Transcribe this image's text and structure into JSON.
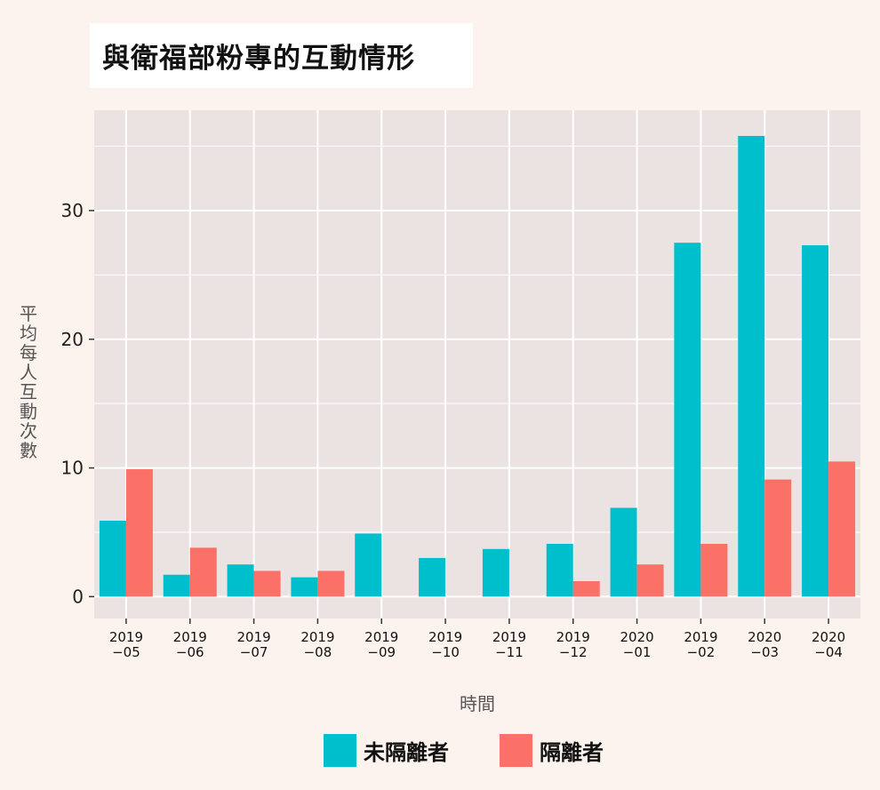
{
  "chart_data": {
    "type": "bar",
    "title": "與衛福部粉專的互動情形",
    "xlabel": "時間",
    "ylabel": "平均每人互動次數",
    "ylim": [
      -1.7,
      37.8
    ],
    "yticks": [
      0,
      10,
      20,
      30
    ],
    "grid": true,
    "legend_position": "bottom",
    "categories": [
      "2019\n−05",
      "2019\n−06",
      "2019\n−07",
      "2019\n−08",
      "2019\n−09",
      "2019\n−10",
      "2019\n−11",
      "2019\n−12",
      "2020\n−01",
      "2019\n−02",
      "2020\n−03",
      "2020\n−04"
    ],
    "series": [
      {
        "name": "未隔離者",
        "color": "#00bfcd",
        "values": [
          5.9,
          1.7,
          2.5,
          1.5,
          4.9,
          3.0,
          3.7,
          4.1,
          6.9,
          27.5,
          35.8,
          27.3
        ]
      },
      {
        "name": "隔離者",
        "color": "#fb7168",
        "values": [
          9.9,
          3.8,
          2.0,
          2.0,
          null,
          null,
          null,
          1.2,
          2.5,
          4.1,
          9.1,
          10.5
        ]
      }
    ],
    "colors": {
      "panel": "#ebe3e2",
      "grid": "#ffffff",
      "background": "#fdf3ee"
    }
  }
}
